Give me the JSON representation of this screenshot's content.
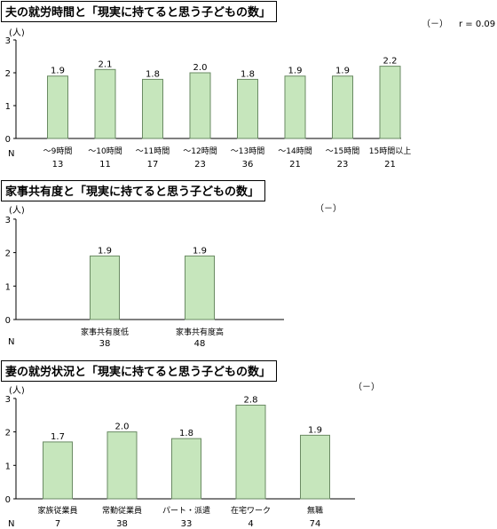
{
  "charts": [
    {
      "title": "夫の就労時間と「現実に持てると思う子どもの数」",
      "unit": "(人)",
      "sign": "（－）",
      "r_label": "r = 0.09",
      "n_label": "N",
      "colors": {
        "bar_fill": "#c6e6bc",
        "bar_stroke": "#6a8a63"
      }
    },
    {
      "title": "家事共有度と「現実に持てると思う子どもの数」",
      "unit": "(人)",
      "sign": "（－）",
      "n_label": "N"
    },
    {
      "title": "妻の就労状況と「現実に持てると思う子どもの数」",
      "unit": "(人)",
      "sign": "（－）",
      "n_label": "N"
    }
  ],
  "chart_data": [
    {
      "type": "bar",
      "title": "夫の就労時間と「現実に持てると思う子どもの数」",
      "ylabel": "(人)",
      "ylim": [
        0,
        3
      ],
      "yticks": [
        0,
        1,
        2,
        3
      ],
      "categories": [
        "～9時間",
        "～10時間",
        "～11時間",
        "～12時間",
        "～13時間",
        "～14時間",
        "～15時間",
        "15時間以上"
      ],
      "values": [
        1.9,
        2.1,
        1.8,
        2.0,
        1.8,
        1.9,
        1.9,
        2.2
      ],
      "value_labels": [
        "1.9",
        "2.1",
        "1.8",
        "2.0",
        "1.8",
        "1.9",
        "1.9",
        "2.2"
      ],
      "n": [
        "13",
        "11",
        "17",
        "23",
        "36",
        "21",
        "23",
        "21"
      ]
    },
    {
      "type": "bar",
      "title": "家事共有度と「現実に持てると思う子どもの数」",
      "ylabel": "(人)",
      "ylim": [
        0,
        3
      ],
      "yticks": [
        0,
        1,
        2,
        3
      ],
      "categories": [
        "家事共有度低",
        "家事共有度高"
      ],
      "values": [
        1.9,
        1.9
      ],
      "value_labels": [
        "1.9",
        "1.9"
      ],
      "n": [
        "38",
        "48"
      ]
    },
    {
      "type": "bar",
      "title": "妻の就労状況と「現実に持てると思う子どもの数」",
      "ylabel": "(人)",
      "ylim": [
        0,
        3
      ],
      "yticks": [
        0,
        1,
        2,
        3
      ],
      "categories": [
        "家族従業員",
        "常勤従業員",
        "パート・派遣",
        "在宅ワーク",
        "無職"
      ],
      "values": [
        1.7,
        2.0,
        1.8,
        2.8,
        1.9
      ],
      "value_labels": [
        "1.7",
        "2.0",
        "1.8",
        "2.8",
        "1.9"
      ],
      "n": [
        "7",
        "38",
        "33",
        "4",
        "74"
      ]
    }
  ]
}
